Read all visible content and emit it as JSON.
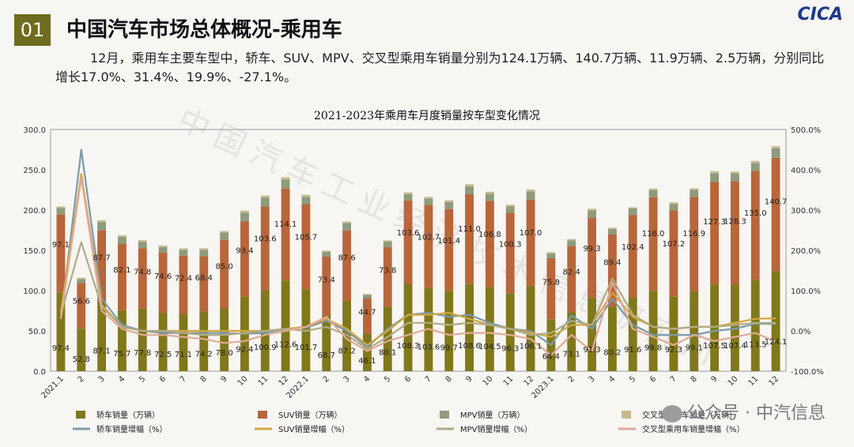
{
  "header": {
    "badge": "01",
    "title": "中国汽车市场总体概况-乘用车",
    "logo": "CICA"
  },
  "description": "12月，乘用车主要车型中，轿车、SUV、MPV、交叉型乘用车销量分别为124.1万辆、140.7万辆、11.9万辆、2.5万辆，分别同比增长17.0%、31.4%、19.9%、-27.1%。",
  "watermark": "中国汽车工业经济技术信息研究所",
  "source": "公众号 · 中汽信息",
  "chart_data": {
    "type": "bar",
    "stacked": true,
    "title": "2021-2023年乘用车月度销量按车型变化情况",
    "categories": [
      "2021.1",
      "2",
      "3",
      "4",
      "5",
      "6",
      "7",
      "8",
      "9",
      "10",
      "11",
      "12",
      "2022.1",
      "2",
      "3",
      "4",
      "5",
      "6",
      "7",
      "8",
      "9",
      "10",
      "11",
      "12",
      "2023.1",
      "2",
      "3",
      "4",
      "5",
      "6",
      "7",
      "8",
      "9",
      "10",
      "11",
      "12"
    ],
    "y_left": {
      "range": [
        0,
        300
      ],
      "ticks": [
        "0.0",
        "50.0",
        "100.0",
        "150.0",
        "200.0",
        "250.0",
        "300.0"
      ]
    },
    "y_right": {
      "range": [
        -100,
        500
      ],
      "ticks": [
        "-100.0%",
        "0.0%",
        "100.0%",
        "200.0%",
        "300.0%",
        "400.0%",
        "500.0%"
      ]
    },
    "grid": false,
    "legend_position": "bottom",
    "series": [
      {
        "name": "轿车销量（万辆）",
        "type": "bar",
        "axis": "left",
        "color": "#80781a",
        "values": [
          97.4,
          52.8,
          87.1,
          75.7,
          77.8,
          72.5,
          71.1,
          74.2,
          78.0,
          92.4,
          100.9,
          112.6,
          101.7,
          68.7,
          87.2,
          46.1,
          80.1,
          108.3,
          103.6,
          99.7,
          108.6,
          104.5,
          96.3,
          106.1,
          64.4,
          73.1,
          91.3,
          80.2,
          91.6,
          99.8,
          92.3,
          99.1,
          107.5,
          107.4,
          113.5,
          124.1
        ]
      },
      {
        "name": "SUV销量（万辆）",
        "type": "bar",
        "axis": "left",
        "color": "#b8663a",
        "values": [
          97.1,
          56.6,
          87.7,
          82.1,
          74.8,
          74.6,
          72.4,
          68.4,
          85.0,
          93.4,
          103.6,
          114.1,
          105.7,
          73.4,
          87.6,
          44.7,
          73.8,
          103.6,
          102.7,
          101.4,
          111.0,
          106.8,
          100.3,
          107.0,
          75.8,
          82.4,
          99.3,
          89.4,
          102.4,
          116.0,
          107.2,
          116.9,
          127.3,
          128.3,
          135.0,
          140.7
        ]
      },
      {
        "name": "MPV销量（万辆）",
        "type": "bar",
        "axis": "left",
        "color": "#8e9b7c",
        "values": [
          8,
          5,
          10,
          9,
          8,
          7,
          7,
          8,
          9,
          11,
          11,
          11,
          9,
          6,
          9,
          4,
          7,
          8,
          8,
          9,
          10,
          9,
          8,
          10,
          6,
          7,
          9,
          7,
          8,
          9,
          8,
          9,
          11,
          10,
          10,
          11.9
        ]
      },
      {
        "name": "交叉型乘用车销量（万辆）",
        "type": "bar",
        "axis": "left",
        "color": "#c9b98c",
        "values": [
          2,
          1.5,
          2.5,
          2,
          2,
          2,
          2,
          2,
          2,
          2.5,
          2.5,
          3,
          2.5,
          1.5,
          2,
          1,
          1.5,
          2,
          2,
          2,
          2.5,
          2.5,
          2,
          2.5,
          1.5,
          1.5,
          2,
          1.5,
          1.5,
          2,
          2,
          2,
          2.5,
          2,
          2.5,
          2.5
        ]
      },
      {
        "name": "轿车销量增幅（%）",
        "type": "line",
        "axis": "right",
        "color": "#7a9aa8",
        "values": [
          30,
          450,
          80,
          15,
          0,
          -5,
          -5,
          -5,
          -5,
          -7,
          -5,
          5,
          8,
          25,
          0,
          -40,
          5,
          40,
          45,
          35,
          40,
          20,
          5,
          0,
          -35,
          38,
          5,
          80,
          15,
          -10,
          -10,
          -10,
          0,
          5,
          18,
          17
        ]
      },
      {
        "name": "SUV销量增幅（%）",
        "type": "line",
        "axis": "right",
        "color": "#d4a640",
        "values": [
          45,
          390,
          65,
          10,
          0,
          0,
          0,
          0,
          0,
          0,
          0,
          5,
          10,
          30,
          5,
          -35,
          0,
          40,
          40,
          45,
          30,
          15,
          5,
          -5,
          -15,
          15,
          15,
          95,
          35,
          10,
          5,
          10,
          10,
          20,
          30,
          31.4
        ]
      },
      {
        "name": "MPV销量增幅（%）",
        "type": "line",
        "axis": "right",
        "color": "#b0ab85",
        "values": [
          40,
          220,
          60,
          10,
          0,
          0,
          -5,
          -10,
          -10,
          -5,
          0,
          5,
          0,
          10,
          -10,
          -45,
          -15,
          20,
          20,
          15,
          20,
          15,
          5,
          -10,
          -5,
          25,
          15,
          130,
          40,
          10,
          5,
          10,
          10,
          15,
          20,
          19.9
        ]
      },
      {
        "name": "交叉型乘用车销量增幅（%）",
        "type": "line",
        "axis": "right",
        "color": "#e0aa98",
        "values": [
          30,
          380,
          50,
          5,
          -10,
          -10,
          -15,
          -20,
          -30,
          -25,
          -10,
          0,
          10,
          35,
          -20,
          -50,
          -25,
          -10,
          5,
          -10,
          -5,
          -5,
          -10,
          -20,
          -60,
          -10,
          -50,
          120,
          5,
          -15,
          -35,
          -10,
          -25,
          -15,
          -5,
          -27.1
        ]
      }
    ]
  }
}
